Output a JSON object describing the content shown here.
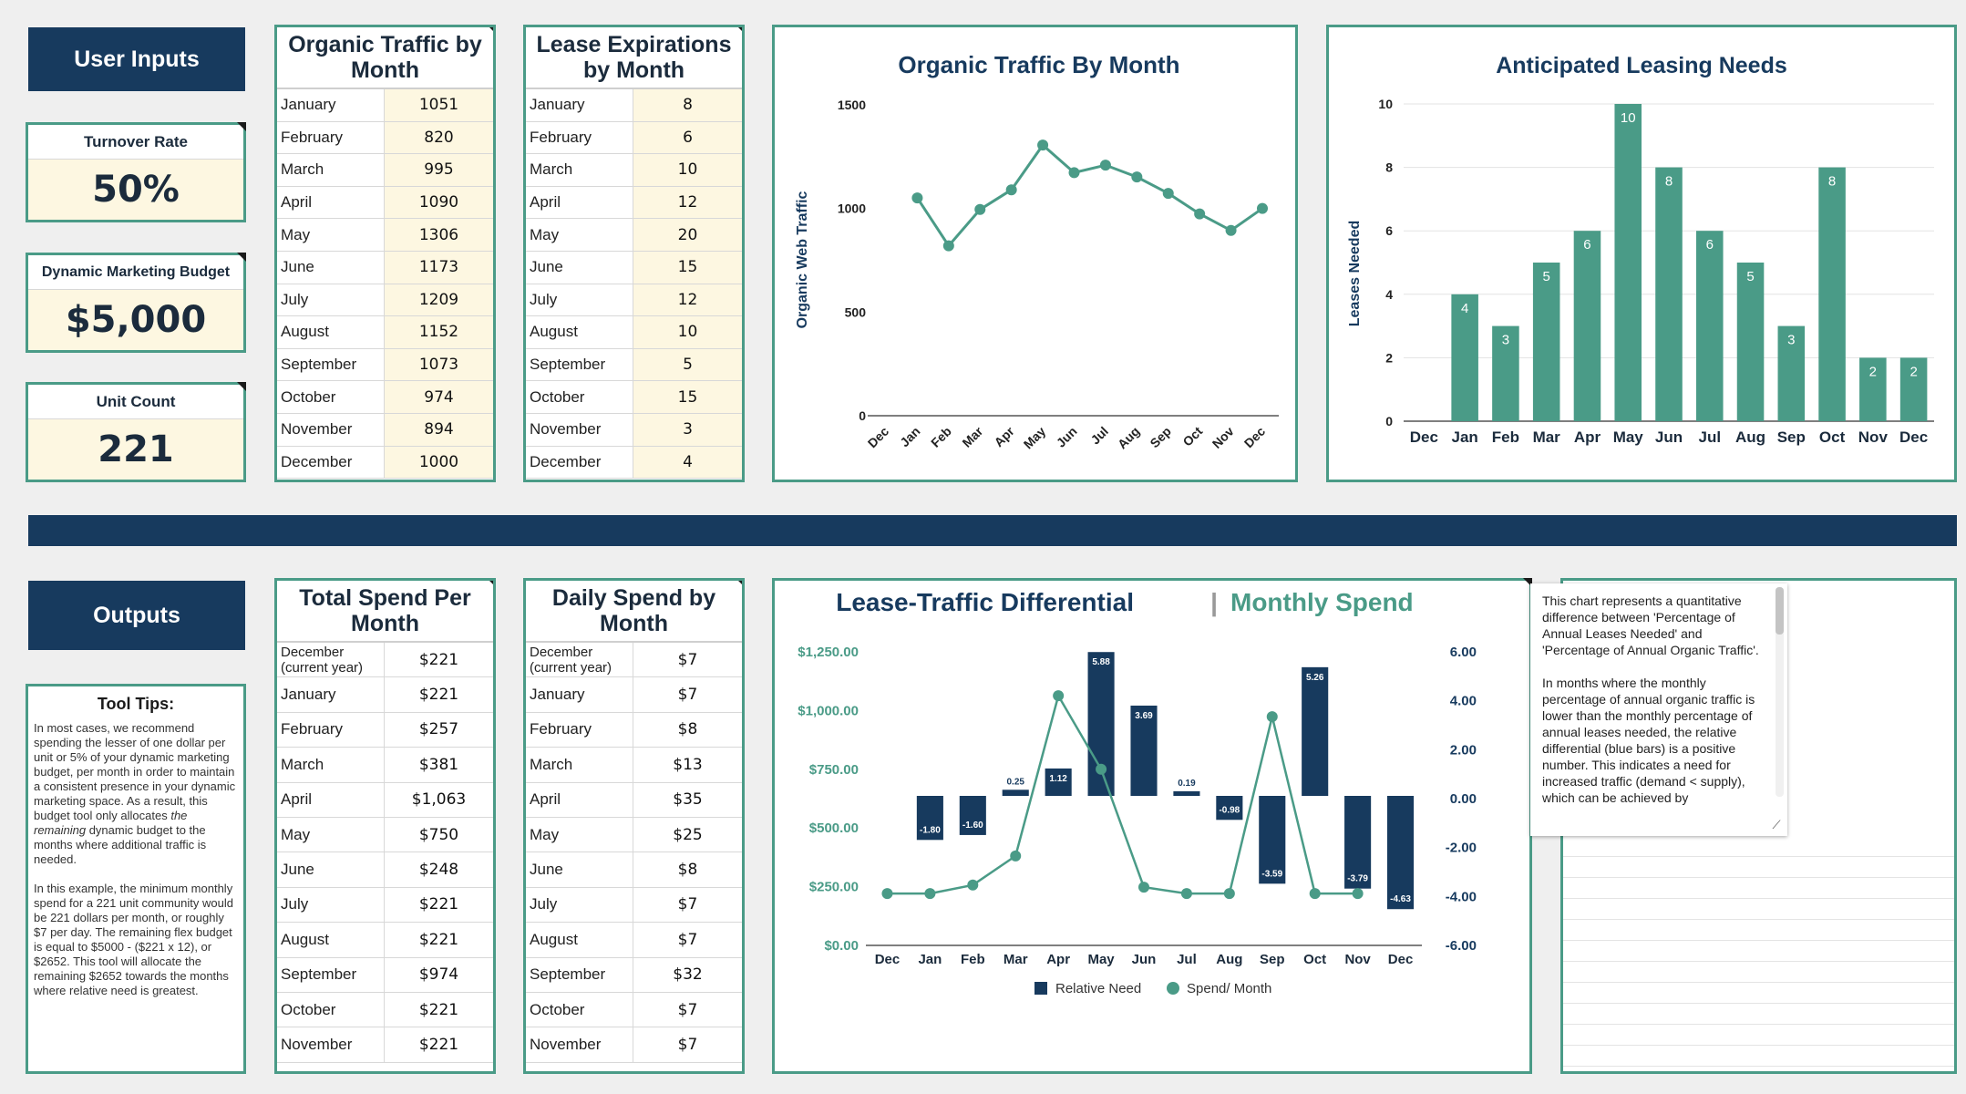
{
  "user_inputs": {
    "header": "User Inputs",
    "turnover": {
      "label": "Turnover Rate",
      "value": "50%"
    },
    "budget": {
      "label": "Dynamic Marketing Budget",
      "value": "$5,000"
    },
    "units": {
      "label": "Unit Count",
      "value": "221"
    }
  },
  "organic_table": {
    "title": "Organic Traffic by Month",
    "rows": [
      {
        "m": "January",
        "v": "1051"
      },
      {
        "m": "February",
        "v": "820"
      },
      {
        "m": "March",
        "v": "995"
      },
      {
        "m": "April",
        "v": "1090"
      },
      {
        "m": "May",
        "v": "1306"
      },
      {
        "m": "June",
        "v": "1173"
      },
      {
        "m": "July",
        "v": "1209"
      },
      {
        "m": "August",
        "v": "1152"
      },
      {
        "m": "September",
        "v": "1073"
      },
      {
        "m": "October",
        "v": "974"
      },
      {
        "m": "November",
        "v": "894"
      },
      {
        "m": "December",
        "v": "1000"
      }
    ]
  },
  "lease_table": {
    "title": "Lease Expirations by Month",
    "rows": [
      {
        "m": "January",
        "v": "8"
      },
      {
        "m": "February",
        "v": "6"
      },
      {
        "m": "March",
        "v": "10"
      },
      {
        "m": "April",
        "v": "12"
      },
      {
        "m": "May",
        "v": "20"
      },
      {
        "m": "June",
        "v": "15"
      },
      {
        "m": "July",
        "v": "12"
      },
      {
        "m": "August",
        "v": "10"
      },
      {
        "m": "September",
        "v": "5"
      },
      {
        "m": "October",
        "v": "15"
      },
      {
        "m": "November",
        "v": "3"
      },
      {
        "m": "December",
        "v": "4"
      }
    ]
  },
  "outputs": {
    "header": "Outputs",
    "tips_title": "Tool Tips:",
    "tips_p1a": "In most cases, we recommend spending the lesser of one dollar per unit or 5% of your dynamic marketing budget, per month in order to maintain a consistent presence in your dynamic marketing space.  As a result, this budget tool only allocates ",
    "tips_p1_em": "the remaining",
    "tips_p1b": " dynamic budget to the months where additional traffic is needed.",
    "tips_p2": "In this example, the minimum monthly spend for a 221 unit community would be 221 dollars per month, or roughly $7 per day. The remaining flex budget is equal to $5000 - ($221 x 12), or $2652. This tool will allocate the remaining $2652 towards the months where relative need is greatest."
  },
  "total_spend_table": {
    "title": "Total Spend Per Month",
    "rows": [
      {
        "m": "December (current year)",
        "v": "$221"
      },
      {
        "m": "January",
        "v": "$221"
      },
      {
        "m": "February",
        "v": "$257"
      },
      {
        "m": "March",
        "v": "$381"
      },
      {
        "m": "April",
        "v": "$1,063"
      },
      {
        "m": "May",
        "v": "$750"
      },
      {
        "m": "June",
        "v": "$248"
      },
      {
        "m": "July",
        "v": "$221"
      },
      {
        "m": "August",
        "v": "$221"
      },
      {
        "m": "September",
        "v": "$974"
      },
      {
        "m": "October",
        "v": "$221"
      },
      {
        "m": "November",
        "v": "$221"
      }
    ]
  },
  "daily_spend_table": {
    "title": "Daily Spend by Month",
    "rows": [
      {
        "m": "December (current year)",
        "v": "$7"
      },
      {
        "m": "January",
        "v": "$7"
      },
      {
        "m": "February",
        "v": "$8"
      },
      {
        "m": "March",
        "v": "$13"
      },
      {
        "m": "April",
        "v": "$35"
      },
      {
        "m": "May",
        "v": "$25"
      },
      {
        "m": "June",
        "v": "$8"
      },
      {
        "m": "July",
        "v": "$7"
      },
      {
        "m": "August",
        "v": "$7"
      },
      {
        "m": "September",
        "v": "$32"
      },
      {
        "m": "October",
        "v": "$7"
      },
      {
        "m": "November",
        "v": "$7"
      }
    ]
  },
  "note": {
    "p1": "This chart represents a quantitative difference between 'Percentage of Annual Leases Needed' and 'Percentage of Annual Organic Traffic'.",
    "p2": "In months where the monthly percentage of annual organic traffic is lower than the monthly percentage of annual leases needed, the relative differential (blue bars) is a positive number. This indicates a need for increased traffic (demand < supply), which can be achieved by"
  },
  "colors": {
    "navy": "#173a5e",
    "teal": "#4a9b87",
    "cream": "#fdf7e1"
  },
  "chart_data": [
    {
      "type": "line",
      "title": "Organic Traffic By Month",
      "ylabel": "Organic Web Traffic",
      "xlabel": "",
      "categories": [
        "Dec",
        "Jan",
        "Feb",
        "Mar",
        "Apr",
        "May",
        "Jun",
        "Jul",
        "Aug",
        "Sep",
        "Oct",
        "Nov",
        "Dec"
      ],
      "values": [
        null,
        1051,
        820,
        995,
        1090,
        1306,
        1173,
        1209,
        1152,
        1073,
        974,
        894,
        1000
      ],
      "ylim": [
        0,
        1500
      ],
      "yticks": [
        "0",
        "500",
        "1000",
        "1500"
      ]
    },
    {
      "type": "bar",
      "title": "Anticipated Leasing Needs",
      "ylabel": "Leases Needed",
      "categories": [
        "Dec",
        "Jan",
        "Feb",
        "Mar",
        "Apr",
        "May",
        "Jun",
        "Jul",
        "Aug",
        "Sep",
        "Oct",
        "Nov",
        "Dec"
      ],
      "values": [
        null,
        4,
        3,
        5,
        6,
        10,
        8,
        6,
        5,
        3,
        8,
        2,
        2
      ],
      "labels": [
        "",
        "4",
        "3",
        "5",
        "6",
        "10",
        "8",
        "6",
        "5",
        "3",
        "8",
        "2",
        "2"
      ],
      "ylim": [
        0,
        10
      ],
      "yticks": [
        "0",
        "2",
        "4",
        "6",
        "8",
        "10"
      ]
    },
    {
      "type": "bar+line",
      "title": "Lease-Traffic Differential",
      "title_sep": "|",
      "title2": "Monthly Spend",
      "categories": [
        "Dec",
        "Jan",
        "Feb",
        "Mar",
        "Apr",
        "May",
        "Jun",
        "Jul",
        "Aug",
        "Sep",
        "Oct",
        "Nov",
        "Dec"
      ],
      "series": [
        {
          "name": "Relative Need",
          "axis": "right",
          "values": [
            null,
            -1.8,
            -1.6,
            0.25,
            1.12,
            5.88,
            3.69,
            0.19,
            -0.98,
            -3.59,
            5.26,
            -3.79,
            -4.63
          ],
          "labels": [
            "",
            "-1.80",
            "-1.60",
            "0.25",
            "1.12",
            "5.88",
            "3.69",
            "0.19",
            "-0.98",
            "-3.59",
            "5.26",
            "-3.79",
            "-4.63"
          ]
        },
        {
          "name": "Spend/ Month",
          "axis": "left",
          "values": [
            221,
            221,
            257,
            381,
            1063,
            750,
            248,
            221,
            221,
            974,
            221,
            221,
            null
          ]
        }
      ],
      "left_ylim": [
        0,
        1250
      ],
      "left_ticks": [
        "$0.00",
        "$250.00",
        "$500.00",
        "$750.00",
        "$1,000.00",
        "$1,250.00"
      ],
      "right_ylim": [
        -6,
        6
      ],
      "right_ticks": [
        "-6.00",
        "-4.00",
        "-2.00",
        "0.00",
        "2.00",
        "4.00",
        "6.00"
      ]
    }
  ]
}
